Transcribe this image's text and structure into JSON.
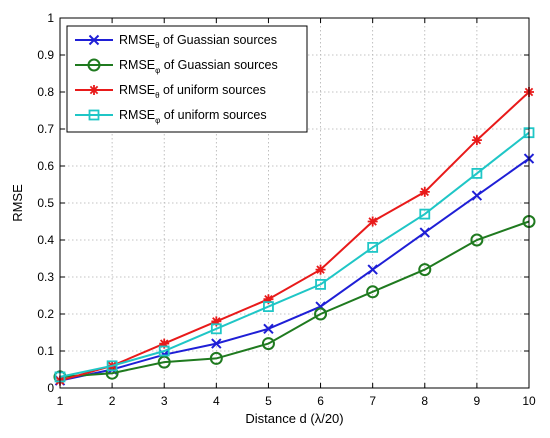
{
  "chart_data": {
    "type": "line",
    "x": [
      1,
      2,
      3,
      4,
      5,
      6,
      7,
      8,
      9,
      10
    ],
    "xlim": [
      1,
      10
    ],
    "ylim": [
      0,
      1
    ],
    "xticks": [
      "1",
      "2",
      "3",
      "4",
      "5",
      "6",
      "7",
      "8",
      "9",
      "10"
    ],
    "yticks": [
      "0",
      "0.1",
      "0.2",
      "0.3",
      "0.4",
      "0.5",
      "0.6",
      "0.7",
      "0.8",
      "0.9",
      "1"
    ],
    "xlabel": "Distance d (λ/20)",
    "ylabel": "RMSE",
    "grid": true,
    "legend_position": "top-left",
    "series": [
      {
        "name": "RMSEθ of Guassian sources",
        "legend": {
          "main": "RMSE",
          "sub": "θ",
          "rest": " of Guassian sources"
        },
        "color": "#1f1fd6",
        "marker": "x",
        "values": [
          0.02,
          0.05,
          0.09,
          0.12,
          0.16,
          0.22,
          0.32,
          0.42,
          0.52,
          0.62
        ]
      },
      {
        "name": "RMSEφ of Guassian sources",
        "legend": {
          "main": "RMSE",
          "sub": "φ",
          "rest": " of Guassian sources"
        },
        "color": "#1f7a1f",
        "marker": "circle",
        "values": [
          0.03,
          0.04,
          0.07,
          0.08,
          0.12,
          0.2,
          0.26,
          0.32,
          0.4,
          0.45
        ]
      },
      {
        "name": "RMSEθ of uniform sources",
        "legend": {
          "main": "RMSE",
          "sub": "θ",
          "rest": " of uniform sources"
        },
        "color": "#e81a1a",
        "marker": "star",
        "values": [
          0.02,
          0.06,
          0.12,
          0.18,
          0.24,
          0.32,
          0.45,
          0.53,
          0.67,
          0.8
        ]
      },
      {
        "name": "RMSEφ of uniform sources",
        "legend": {
          "main": "RMSE",
          "sub": "φ",
          "rest": " of uniform  sources"
        },
        "color": "#1fc6c6",
        "marker": "square",
        "values": [
          0.03,
          0.06,
          0.1,
          0.16,
          0.22,
          0.28,
          0.38,
          0.47,
          0.58,
          0.69
        ]
      }
    ]
  }
}
